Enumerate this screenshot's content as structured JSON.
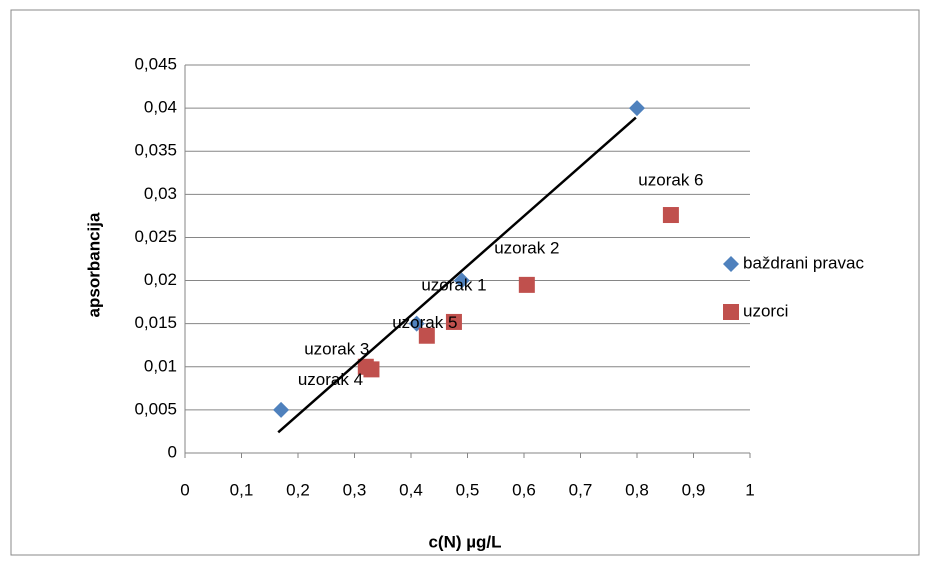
{
  "chart_data": {
    "type": "scatter",
    "xlabel": "c(N) µg/L",
    "ylabel": "apsorbancija",
    "xlim": [
      0,
      1
    ],
    "ylim": [
      0,
      0.045
    ],
    "xticks": [
      0,
      {
        "value": 0.1,
        "label": "0,1"
      },
      {
        "value": 0.2,
        "label": "0,2"
      },
      {
        "value": 0.3,
        "label": "0,3"
      },
      {
        "value": 0.4,
        "label": "0,4"
      },
      {
        "value": 0.5,
        "label": "0,5"
      },
      {
        "value": 0.6,
        "label": "0,6"
      },
      {
        "value": 0.7,
        "label": "0,7"
      },
      {
        "value": 0.8,
        "label": "0,8"
      },
      {
        "value": 0.9,
        "label": "0,9"
      },
      1
    ],
    "yticks": [
      0,
      {
        "value": 0.005,
        "label": "0,005"
      },
      {
        "value": 0.01,
        "label": "0,01"
      },
      {
        "value": 0.015,
        "label": "0,015"
      },
      {
        "value": 0.02,
        "label": "0,02"
      },
      {
        "value": 0.025,
        "label": "0,025"
      },
      {
        "value": 0.03,
        "label": "0,03"
      },
      {
        "value": 0.035,
        "label": "0,035"
      },
      {
        "value": 0.04,
        "label": "0,04"
      },
      {
        "value": 0.045,
        "label": "0,045"
      }
    ],
    "grid": true,
    "legend": "right",
    "series": [
      {
        "name": "baždrani pravac",
        "color": "#4f81bd",
        "marker": "diamond",
        "x": [
          0.17,
          0.41,
          0.49,
          0.8
        ],
        "values": [
          0.005,
          0.015,
          0.02,
          0.04
        ]
      },
      {
        "name": "uzorci",
        "color": "#c0504d",
        "marker": "square",
        "x": [
          0.32,
          0.33,
          0.428,
          0.476,
          0.605,
          0.86
        ],
        "values": [
          0.01,
          0.0097,
          0.0136,
          0.0152,
          0.0195,
          0.0276
        ],
        "labels": [
          "uzorak 3",
          "uzorak 4",
          "uzorak 5",
          "uzorak 1",
          "uzorak 2",
          "uzorak 6"
        ]
      }
    ],
    "trendline": {
      "color": "#000000",
      "x": [
        0.165,
        0.798
      ],
      "values": [
        0.0024,
        0.0389
      ]
    }
  }
}
